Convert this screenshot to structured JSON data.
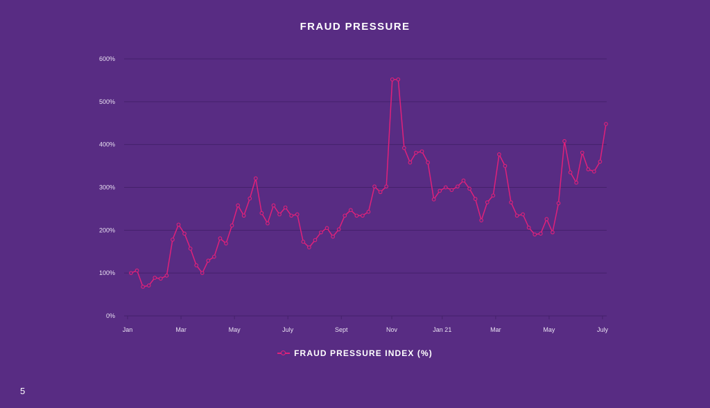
{
  "page": {
    "title": "FRAUD PRESSURE",
    "page_number": "5"
  },
  "colors": {
    "background": "#582c83",
    "gridline": "#44206b",
    "series": "#e0217a",
    "text": "#ffffff"
  },
  "legend": {
    "label": "FRAUD PRESSURE INDEX (%)"
  },
  "chart_data": {
    "type": "line",
    "title": "FRAUD PRESSURE",
    "xlabel": "",
    "ylabel": "",
    "ylim": [
      0,
      600
    ],
    "yticks": [
      0,
      100,
      200,
      300,
      400,
      500,
      600
    ],
    "ytick_labels": [
      "0%",
      "100%",
      "200%",
      "300%",
      "400%",
      "500%",
      "600%"
    ],
    "xtick_labels": [
      "Jan",
      "Mar",
      "May",
      "July",
      "Sept",
      "Nov",
      "Jan 21",
      "Mar",
      "May",
      "July"
    ],
    "xtick_index": [
      0,
      9,
      18,
      27,
      36,
      44.5,
      53,
      62,
      71,
      80
    ],
    "grid": true,
    "legend_position": "bottom",
    "series": [
      {
        "name": "FRAUD PRESSURE INDEX (%)",
        "marker": "open-circle",
        "values": [
          100,
          106,
          68,
          71,
          89,
          87,
          94,
          178,
          213,
          192,
          157,
          118,
          100,
          129,
          138,
          181,
          169,
          211,
          258,
          234,
          274,
          321,
          240,
          216,
          258,
          237,
          253,
          234,
          237,
          173,
          160,
          177,
          195,
          205,
          185,
          202,
          234,
          247,
          234,
          234,
          243,
          302,
          289,
          302,
          552,
          552,
          392,
          358,
          381,
          384,
          358,
          272,
          292,
          300,
          294,
          302,
          316,
          297,
          273,
          223,
          265,
          281,
          377,
          350,
          265,
          234,
          237,
          206,
          190,
          192,
          226,
          195,
          263,
          408,
          335,
          311,
          381,
          342,
          337,
          360,
          448
        ]
      }
    ]
  }
}
